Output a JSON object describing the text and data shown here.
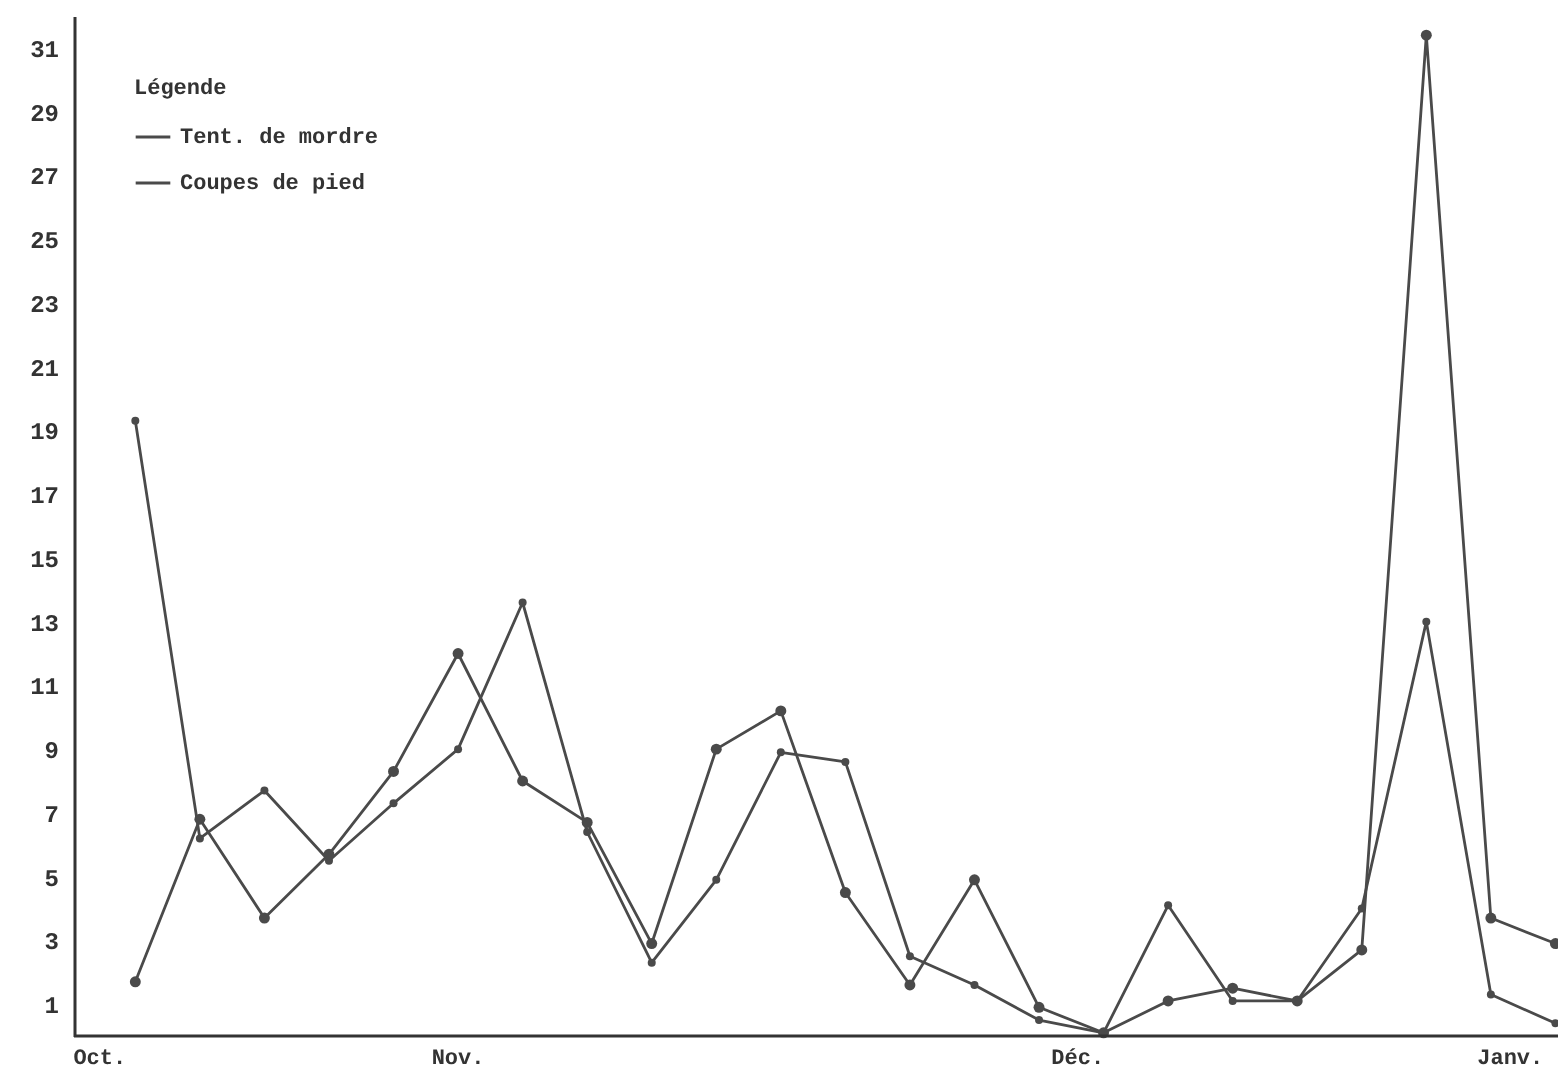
{
  "chart_data": {
    "type": "line",
    "legend_title": "Légende",
    "categories": [
      null,
      null,
      null,
      null,
      null,
      null,
      null,
      null,
      null,
      null,
      null,
      null,
      null,
      null,
      null,
      null,
      null,
      null,
      null,
      null,
      null,
      null,
      null
    ],
    "series": [
      {
        "name": "Tent. de mordre",
        "color": "#4a4a4a",
        "values": [
          19.3,
          6.2,
          7.7,
          5.5,
          7.3,
          9.0,
          13.6,
          6.4,
          2.3,
          4.9,
          8.9,
          8.6,
          2.5,
          1.6,
          0.5,
          0.1,
          4.1,
          1.1,
          1.1,
          4.0,
          13.0,
          1.3,
          0.4
        ]
      },
      {
        "name": "Coupes de pied",
        "color": "#4a4a4a",
        "values": [
          1.7,
          6.8,
          3.7,
          5.7,
          8.3,
          12.0,
          8.0,
          6.7,
          2.9,
          9.0,
          10.2,
          4.5,
          1.6,
          4.9,
          0.9,
          0.1,
          1.1,
          1.5,
          1.1,
          2.7,
          31.4,
          3.7,
          2.9
        ]
      }
    ],
    "ylim": [
      0,
      32
    ],
    "yticks": [
      1,
      3,
      5,
      7,
      9,
      11,
      13,
      15,
      17,
      19,
      21,
      23,
      25,
      27,
      29,
      31
    ],
    "annotations": [
      "Oct.",
      "Nov.",
      "Déc.",
      "Janv."
    ],
    "legend": "top left",
    "grid": false,
    "marker": "circle",
    "line_style": "solid"
  }
}
